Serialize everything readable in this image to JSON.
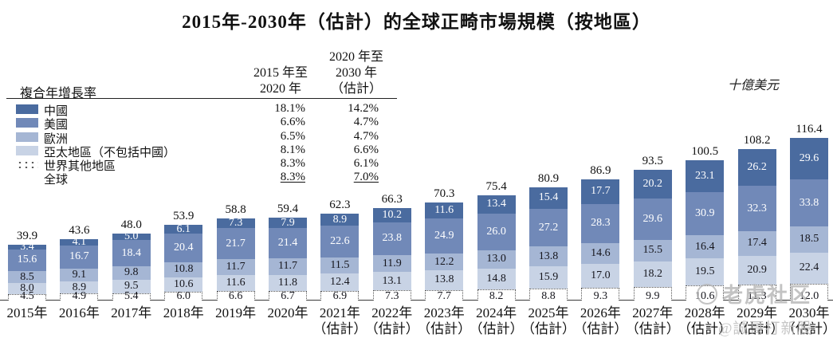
{
  "title": "2015年-2030年（估計）的全球正畸市場規模（按地區）",
  "unit_label": "十億美元",
  "cagr_table": {
    "row_header": "複合年增長率",
    "col1_header_lines": [
      "2015 年至",
      "2020 年"
    ],
    "col2_header_lines": [
      "2020 年至",
      "2030 年",
      "（估計）"
    ],
    "rows": [
      {
        "label": "中國",
        "cagr_2015_2020": "18.1%",
        "cagr_2020_2030": "14.2%",
        "swatch": "#4a6b9f",
        "underline": false
      },
      {
        "label": "美國",
        "cagr_2015_2020": "6.6%",
        "cagr_2020_2030": "4.7%",
        "swatch": "#7189b8",
        "underline": false
      },
      {
        "label": "歐洲",
        "cagr_2015_2020": "6.5%",
        "cagr_2020_2030": "4.7%",
        "swatch": "#a5b6d4",
        "underline": false
      },
      {
        "label": "亞太地區（不包括中國）",
        "cagr_2015_2020": "8.1%",
        "cagr_2020_2030": "6.6%",
        "swatch": "#c8d3e5",
        "underline": false
      },
      {
        "label": "世界其他地區",
        "cagr_2015_2020": "8.3%",
        "cagr_2020_2030": "6.1%",
        "swatch": "dotted",
        "underline": false
      },
      {
        "label": "全球",
        "cagr_2015_2020": "8.3%",
        "cagr_2020_2030": "7.0%",
        "swatch": "none",
        "underline": true
      }
    ]
  },
  "chart_data": {
    "type": "bar",
    "stacked": true,
    "title": "2015年-2030年（估計）的全球正畸市場規模（按地區）",
    "unit": "十億美元",
    "legend_position": "left",
    "grid": false,
    "ylim": [
      0,
      120
    ],
    "categories": [
      "2015年",
      "2016年",
      "2017年",
      "2018年",
      "2019年",
      "2020年",
      "2021年",
      "2022年",
      "2023年",
      "2024年",
      "2025年",
      "2026年",
      "2027年",
      "2028年",
      "2029年",
      "2030年"
    ],
    "category_sublabels": [
      "",
      "",
      "",
      "",
      "",
      "",
      "（估計）",
      "（估計）",
      "（估計）",
      "（估計）",
      "（估計）",
      "（估計）",
      "（估計）",
      "（估計）",
      "（估計）",
      "（估計）"
    ],
    "series": [
      {
        "name": "中國",
        "color": "#4a6b9f",
        "label_color": "#ffffff",
        "values": [
          3.4,
          4.1,
          5.0,
          6.1,
          7.3,
          7.9,
          8.9,
          10.2,
          11.6,
          13.4,
          15.4,
          17.7,
          20.2,
          23.1,
          26.2,
          29.6
        ]
      },
      {
        "name": "美國",
        "color": "#7189b8",
        "label_color": "#ffffff",
        "values": [
          15.6,
          16.7,
          18.4,
          20.4,
          21.7,
          21.4,
          22.6,
          23.8,
          24.9,
          26.0,
          27.2,
          28.3,
          29.6,
          30.9,
          32.3,
          33.8
        ]
      },
      {
        "name": "歐洲",
        "color": "#a5b6d4",
        "label_color": "#16161d",
        "values": [
          8.5,
          9.1,
          9.8,
          10.8,
          11.7,
          11.7,
          11.5,
          11.9,
          12.2,
          13.0,
          13.8,
          14.6,
          15.5,
          16.4,
          17.4,
          18.5
        ]
      },
      {
        "name": "亞太地區（不包括中國）",
        "color": "#c8d3e5",
        "label_color": "#16161d",
        "values": [
          8.0,
          8.9,
          9.5,
          10.6,
          11.6,
          11.8,
          12.4,
          13.1,
          13.8,
          14.8,
          15.9,
          17.0,
          18.2,
          19.5,
          20.9,
          22.4
        ]
      },
      {
        "name": "世界其他地區",
        "color": "dotted-white",
        "label_color": "#16161d",
        "values": [
          4.5,
          4.9,
          5.4,
          6.0,
          6.6,
          6.7,
          6.9,
          7.3,
          7.7,
          8.2,
          8.8,
          9.3,
          9.9,
          10.6,
          11.3,
          12.0
        ]
      }
    ],
    "totals": [
      39.9,
      43.6,
      48.0,
      53.9,
      58.8,
      59.4,
      62.3,
      66.3,
      70.3,
      75.4,
      80.9,
      86.9,
      93.5,
      100.5,
      108.2,
      116.4
    ]
  },
  "watermark": {
    "community": "老虎社区",
    "handle": "@誠哥打新股"
  }
}
